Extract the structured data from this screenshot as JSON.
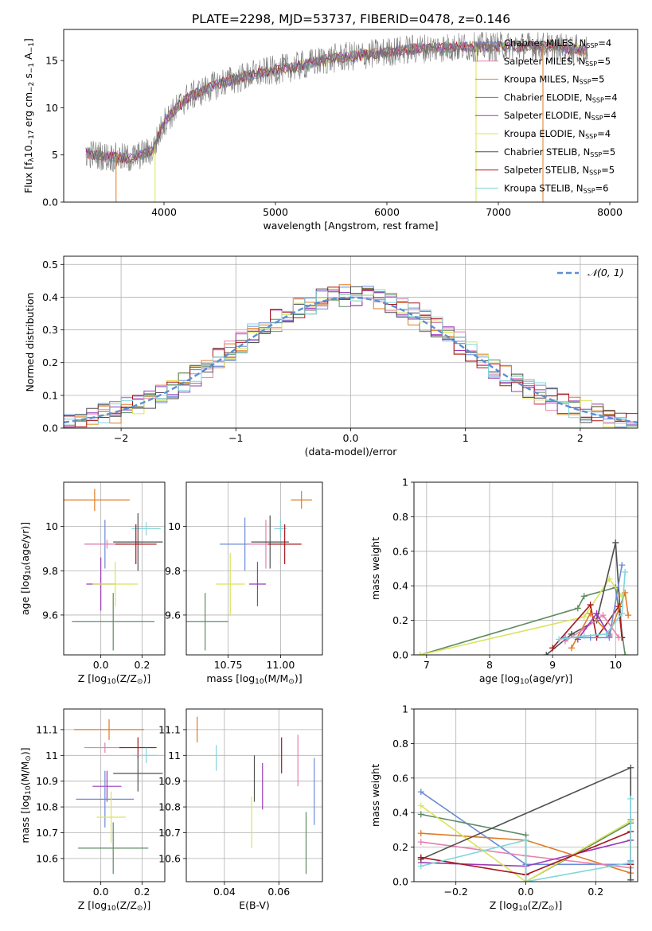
{
  "figure_title": "PLATE=2298, MJD=53737, FIBERID=0478, z=0.146",
  "colors": {
    "blue": "#6b8cd6",
    "orange": "#e07b22",
    "pink": "#e580b0",
    "green": "#5f8a62",
    "purple": "#9b3ab8",
    "yellow": "#d9e45a",
    "dark": "#4f4f4f",
    "red": "#a8161e",
    "cyan": "#7fd6dd",
    "gaussian": "#5b8fd5",
    "grid": "#b0b0b0"
  },
  "chart_data": [
    {
      "id": "spectrum",
      "type": "line",
      "xlabel": "wavelength [Angstrom, rest frame]",
      "ylabel_parts": [
        "Flux [f",
        "λ",
        "10",
        "−17",
        " erg cm",
        "−2",
        " s",
        "−1",
        " A",
        "−1",
        "]"
      ],
      "xlim": [
        3100,
        8250
      ],
      "ylim": [
        0,
        18.3
      ],
      "xticks": [
        4000,
        5000,
        6000,
        7000,
        8000
      ],
      "yticks": [
        0,
        5,
        10,
        15
      ],
      "grid": false,
      "legend_position": "top-right",
      "legend": [
        {
          "label": "Chabrier MILES, N",
          "sub": "SSP",
          "suffix": "=4",
          "color": "blue"
        },
        {
          "label": "Salpeter MILES, N",
          "sub": "SSP",
          "suffix": "=5",
          "color": "pink"
        },
        {
          "label": "Kroupa MILES, N",
          "sub": "SSP",
          "suffix": "=5",
          "color": "orange"
        },
        {
          "label": "Chabrier ELODIE, N",
          "sub": "SSP",
          "suffix": "=4",
          "color": "green"
        },
        {
          "label": "Salpeter ELODIE, N",
          "sub": "SSP",
          "suffix": "=4",
          "color": "purple"
        },
        {
          "label": "Kroupa ELODIE, N",
          "sub": "SSP",
          "suffix": "=4",
          "color": "yellow"
        },
        {
          "label": "Chabrier STELIB, N",
          "sub": "SSP",
          "suffix": "=5",
          "color": "dark"
        },
        {
          "label": "Salpeter STELIB, N",
          "sub": "SSP",
          "suffix": "=5",
          "color": "red"
        },
        {
          "label": "Kroupa STELIB, N",
          "sub": "SSP",
          "suffix": "=6",
          "color": "cyan"
        }
      ],
      "data_trace": {
        "x_range": [
          3300,
          7800
        ],
        "color": "gray"
      },
      "continuum": {
        "x": [
          3300,
          3500,
          3700,
          3900,
          4000,
          4200,
          4500,
          4800,
          5000,
          5200,
          5500,
          5800,
          6000,
          6300,
          6600,
          7000,
          7400,
          7800
        ],
        "y": [
          5.2,
          4.8,
          4.6,
          5.5,
          8.5,
          11.0,
          12.6,
          13.5,
          14.0,
          14.4,
          15.2,
          15.6,
          15.9,
          16.3,
          16.4,
          16.5,
          16.5,
          16.1
        ]
      },
      "model_drops": [
        {
          "color": "orange",
          "x": 3570
        },
        {
          "color": "yellow",
          "x": 3920
        },
        {
          "color": "orange",
          "x": 6800
        },
        {
          "color": "yellow",
          "x": 6800
        },
        {
          "color": "orange",
          "x": 7400
        }
      ]
    },
    {
      "id": "residual_hist",
      "type": "step",
      "xlabel": "(data-model)/error",
      "ylabel": "Normed distribution",
      "xlim": [
        -2.5,
        2.5
      ],
      "ylim": [
        0,
        0.525
      ],
      "xticks": [
        -2,
        -1,
        0,
        1,
        2
      ],
      "yticks": [
        0.0,
        0.1,
        0.2,
        0.3,
        0.4,
        0.5
      ],
      "grid": true,
      "bin_width": 0.1,
      "legend_position": "top-right",
      "gaussian_label": "𝒩(0, 1)",
      "series_colors": [
        "blue",
        "orange",
        "pink",
        "green",
        "purple",
        "yellow",
        "dark",
        "red",
        "cyan"
      ]
    },
    {
      "id": "z_age",
      "type": "errorbar",
      "xlabel_parts": [
        "Z [log",
        "10",
        "(Z/Z",
        "⊙",
        ")]"
      ],
      "ylabel_parts": [
        "age  [log",
        "10",
        "(age/yr)]"
      ],
      "xlim": [
        -0.18,
        0.31
      ],
      "ylim": [
        9.42,
        10.2
      ],
      "xticks": [
        0.0,
        0.2
      ],
      "yticks": [
        9.6,
        9.8,
        10.0
      ],
      "grid": true,
      "points": [
        {
          "color": "orange",
          "x": -0.03,
          "xerr": 0.17,
          "y": 10.12,
          "yerr": 0.05
        },
        {
          "color": "cyan",
          "x": 0.22,
          "xerr": 0.07,
          "y": 9.99,
          "yerr": 0.03
        },
        {
          "color": "blue",
          "x": 0.02,
          "xerr": 0.1,
          "y": 9.92,
          "yerr": 0.11
        },
        {
          "color": "pink",
          "x": 0.03,
          "xerr": 0.11,
          "y": 9.92,
          "yerr": 0.02
        },
        {
          "color": "dark",
          "x": 0.18,
          "xerr": 0.12,
          "y": 9.93,
          "yerr": 0.13
        },
        {
          "color": "red",
          "x": 0.17,
          "xerr": 0.1,
          "y": 9.92,
          "yerr": 0.09
        },
        {
          "color": "purple",
          "x": 0.0,
          "xerr": 0.07,
          "y": 9.74,
          "yerr": 0.12
        },
        {
          "color": "yellow",
          "x": 0.07,
          "xerr": 0.11,
          "y": 9.74,
          "yerr": 0.1
        },
        {
          "color": "green",
          "x": 0.06,
          "xerr": 0.2,
          "y": 9.57,
          "yerr": 0.13
        }
      ]
    },
    {
      "id": "mass_age",
      "type": "errorbar",
      "xlabel_parts": [
        "mass [log",
        "10",
        "(M/M",
        "⊙",
        ")]"
      ],
      "ylabel_parts": [],
      "xlim": [
        10.55,
        11.2
      ],
      "ylim": [
        9.42,
        10.2
      ],
      "xticks": [
        10.75,
        11.0
      ],
      "tick_labels": [
        "10.75",
        "11.00"
      ],
      "yticks": [
        9.6,
        9.8,
        10.0
      ],
      "grid": true,
      "points": [
        {
          "color": "orange",
          "x": 11.1,
          "xerr": 0.05,
          "y": 10.12,
          "yerr": 0.04
        },
        {
          "color": "cyan",
          "x": 11.0,
          "xerr": 0.03,
          "y": 9.99,
          "yerr": 0.04
        },
        {
          "color": "blue",
          "x": 10.83,
          "xerr": 0.12,
          "y": 9.92,
          "yerr": 0.12
        },
        {
          "color": "pink",
          "x": 10.93,
          "xerr": 0.09,
          "y": 9.92,
          "yerr": 0.11
        },
        {
          "color": "dark",
          "x": 10.95,
          "xerr": 0.09,
          "y": 9.93,
          "yerr": 0.12
        },
        {
          "color": "red",
          "x": 11.02,
          "xerr": 0.08,
          "y": 9.92,
          "yerr": 0.09
        },
        {
          "color": "purple",
          "x": 10.89,
          "xerr": 0.04,
          "y": 9.74,
          "yerr": 0.1
        },
        {
          "color": "yellow",
          "x": 10.76,
          "xerr": 0.07,
          "y": 9.74,
          "yerr": 0.14
        },
        {
          "color": "green",
          "x": 10.64,
          "xerr": 0.11,
          "y": 9.57,
          "yerr": 0.13
        }
      ]
    },
    {
      "id": "age_weight",
      "type": "line",
      "xlabel_parts": [
        "age  [log",
        "10",
        "(age/yr)]"
      ],
      "ylabel": "mass weight",
      "xlim": [
        6.8,
        10.35
      ],
      "ylim": [
        0,
        1.0
      ],
      "xticks": [
        7,
        8,
        9,
        10
      ],
      "yticks": [
        0.0,
        0.2,
        0.4,
        0.6,
        0.8,
        1.0
      ],
      "grid": true,
      "series": [
        {
          "color": "green",
          "x": [
            6.9,
            9.4,
            9.5,
            10.0,
            10.15
          ],
          "y": [
            0.0,
            0.27,
            0.34,
            0.39,
            0.0
          ]
        },
        {
          "color": "yellow",
          "x": [
            6.9,
            9.5,
            9.9,
            10.1
          ],
          "y": [
            0.0,
            0.22,
            0.44,
            0.34
          ]
        },
        {
          "color": "dark",
          "x": [
            8.9,
            9.3,
            9.7,
            10.0,
            10.1
          ],
          "y": [
            0.0,
            0.12,
            0.2,
            0.65,
            0.1
          ]
        },
        {
          "color": "red",
          "x": [
            9.0,
            9.6,
            9.7,
            10.05,
            10.1
          ],
          "y": [
            0.04,
            0.29,
            0.1,
            0.28,
            0.1
          ]
        },
        {
          "color": "orange",
          "x": [
            9.3,
            9.6,
            9.9,
            10.15,
            10.2
          ],
          "y": [
            0.04,
            0.24,
            0.12,
            0.36,
            0.23
          ]
        },
        {
          "color": "pink",
          "x": [
            9.2,
            9.5,
            9.8,
            10.05
          ],
          "y": [
            0.08,
            0.15,
            0.23,
            0.1
          ]
        },
        {
          "color": "purple",
          "x": [
            9.4,
            9.7,
            9.9
          ],
          "y": [
            0.09,
            0.24,
            0.11
          ]
        },
        {
          "color": "blue",
          "x": [
            9.2,
            9.6,
            9.9,
            10.1
          ],
          "y": [
            0.1,
            0.1,
            0.1,
            0.52
          ]
        },
        {
          "color": "cyan",
          "x": [
            9.1,
            9.5,
            9.85,
            10.1,
            10.15
          ],
          "y": [
            0.09,
            0.11,
            0.12,
            0.24,
            0.48
          ]
        }
      ]
    },
    {
      "id": "z_mass",
      "type": "errorbar",
      "xlabel_parts": [
        "Z [log",
        "10",
        "(Z/Z",
        "⊙",
        ")]"
      ],
      "ylabel_parts": [
        "mass [log",
        "10",
        "(M/M",
        "⊙",
        ")]"
      ],
      "xlim": [
        -0.18,
        0.31
      ],
      "ylim": [
        10.51,
        11.18
      ],
      "xticks": [
        0.0,
        0.2
      ],
      "yticks": [
        10.6,
        10.7,
        10.8,
        10.9,
        11.0,
        11.1
      ],
      "grid": true,
      "points": [
        {
          "color": "orange",
          "x": 0.04,
          "xerr": 0.17,
          "y": 11.1,
          "yerr": 0.04
        },
        {
          "color": "pink",
          "x": 0.02,
          "xerr": 0.1,
          "y": 11.03,
          "yerr": 0.02
        },
        {
          "color": "red",
          "x": 0.18,
          "xerr": 0.09,
          "y": 11.03,
          "yerr": 0.04
        },
        {
          "color": "cyan",
          "x": 0.22,
          "xerr": 0.06,
          "y": 11.0,
          "yerr": 0.03
        },
        {
          "color": "dark",
          "x": 0.18,
          "xerr": 0.12,
          "y": 10.93,
          "yerr": 0.07
        },
        {
          "color": "purple",
          "x": 0.03,
          "xerr": 0.07,
          "y": 10.88,
          "yerr": 0.06
        },
        {
          "color": "blue",
          "x": 0.02,
          "xerr": 0.14,
          "y": 10.83,
          "yerr": 0.11
        },
        {
          "color": "yellow",
          "x": 0.05,
          "xerr": 0.07,
          "y": 10.76,
          "yerr": 0.1
        },
        {
          "color": "green",
          "x": 0.06,
          "xerr": 0.17,
          "y": 10.64,
          "yerr": 0.1
        }
      ]
    },
    {
      "id": "ebv_mass",
      "type": "errorbar",
      "xlabel": "E(B-V)",
      "ylabel_parts": [],
      "xlim": [
        0.026,
        0.076
      ],
      "ylim": [
        10.51,
        11.18
      ],
      "xticks": [
        0.04,
        0.06
      ],
      "yticks": [
        10.6,
        10.7,
        10.8,
        10.9,
        11.0,
        11.1
      ],
      "grid": true,
      "points": [
        {
          "color": "orange",
          "x": 0.03,
          "xerr": 0,
          "y": 11.1,
          "yerr": 0.05
        },
        {
          "color": "cyan",
          "x": 0.037,
          "xerr": 0,
          "y": 10.99,
          "yerr": 0.05
        },
        {
          "color": "dark",
          "x": 0.051,
          "xerr": 0,
          "y": 10.91,
          "yerr": 0.09
        },
        {
          "color": "purple",
          "x": 0.054,
          "xerr": 0,
          "y": 10.88,
          "yerr": 0.09
        },
        {
          "color": "yellow",
          "x": 0.05,
          "xerr": 0,
          "y": 10.74,
          "yerr": 0.1
        },
        {
          "color": "red",
          "x": 0.061,
          "xerr": 0,
          "y": 11.0,
          "yerr": 0.07
        },
        {
          "color": "pink",
          "x": 0.067,
          "xerr": 0,
          "y": 10.98,
          "yerr": 0.1
        },
        {
          "color": "green",
          "x": 0.07,
          "xerr": 0,
          "y": 10.66,
          "yerr": 0.12
        },
        {
          "color": "blue",
          "x": 0.073,
          "xerr": 0,
          "y": 10.86,
          "yerr": 0.13
        }
      ]
    },
    {
      "id": "z_weight",
      "type": "line",
      "xlabel_parts": [
        "Z [log",
        "10",
        "(Z/Z",
        "⊙",
        ")]"
      ],
      "ylabel": "mass weight",
      "xlim": [
        -0.32,
        0.32
      ],
      "ylim": [
        0,
        1.0
      ],
      "xticks": [
        -0.2,
        0.0,
        0.2
      ],
      "yticks": [
        0.0,
        0.2,
        0.4,
        0.6,
        0.8,
        1.0
      ],
      "grid": true,
      "series": [
        {
          "color": "blue",
          "x": [
            -0.3,
            0.0,
            0.3,
            0.3
          ],
          "y": [
            0.52,
            0.1,
            0.1,
            0.12
          ]
        },
        {
          "color": "orange",
          "x": [
            -0.3,
            0.0,
            0.3,
            0.3
          ],
          "y": [
            0.28,
            0.24,
            0.05,
            0.36
          ]
        },
        {
          "color": "pink",
          "x": [
            -0.3,
            0.0,
            0.3,
            0.3
          ],
          "y": [
            0.23,
            0.15,
            0.08,
            0.1
          ]
        },
        {
          "color": "green",
          "x": [
            -0.3,
            0.0,
            0.0,
            0.3
          ],
          "y": [
            0.39,
            0.27,
            0.0,
            0.34
          ]
        },
        {
          "color": "purple",
          "x": [
            -0.3,
            0.0,
            0.3
          ],
          "y": [
            0.11,
            0.09,
            0.24
          ]
        },
        {
          "color": "yellow",
          "x": [
            -0.3,
            0.0,
            0.3
          ],
          "y": [
            0.44,
            0.0,
            0.35
          ]
        },
        {
          "color": "dark",
          "x": [
            -0.3,
            0.3,
            0.3
          ],
          "y": [
            0.13,
            0.66,
            0.01
          ]
        },
        {
          "color": "red",
          "x": [
            -0.3,
            0.0,
            0.3,
            0.3
          ],
          "y": [
            0.14,
            0.04,
            0.29,
            0.1
          ]
        },
        {
          "color": "cyan",
          "x": [
            -0.3,
            0.0,
            0.0,
            0.3,
            0.3
          ],
          "y": [
            0.09,
            0.24,
            0.0,
            0.11,
            0.48
          ]
        }
      ]
    }
  ]
}
